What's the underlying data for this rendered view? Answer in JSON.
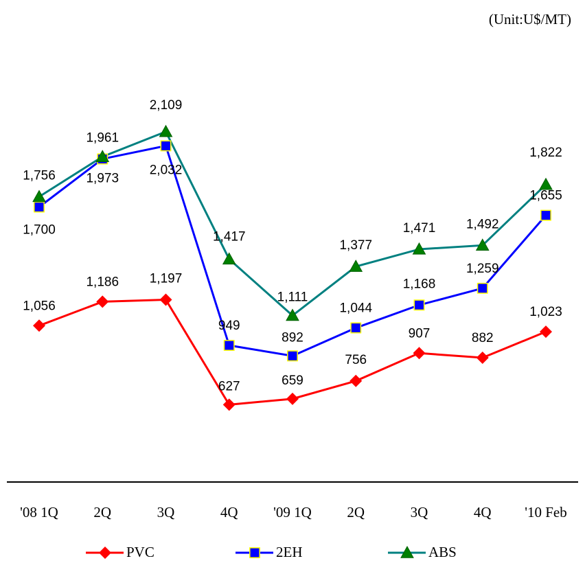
{
  "chart_data": {
    "type": "line",
    "unit": "(Unit:U$/MT)",
    "categories": [
      "'08 1Q",
      "2Q",
      "3Q",
      "4Q",
      "'09 1Q",
      "2Q",
      "3Q",
      "4Q",
      "'10 Feb"
    ],
    "series": [
      {
        "name": "PVC",
        "color": "#ff0000",
        "marker": "diamond",
        "values": [
          1056,
          1186,
          1197,
          627,
          659,
          756,
          907,
          882,
          1023
        ],
        "value_labels": [
          "1,056",
          "1,186",
          "1,197",
          "627",
          "659",
          "756",
          "907",
          "882",
          "1,023"
        ]
      },
      {
        "name": "2EH",
        "color": "#0000ff",
        "marker": "square",
        "values": [
          1700,
          1961,
          2032,
          949,
          892,
          1044,
          1168,
          1259,
          1655
        ],
        "value_labels": [
          "1,700",
          "1,961",
          "2,032",
          "949",
          "892",
          "1,044",
          "1,168",
          "1,259",
          "1,655"
        ]
      },
      {
        "name": "ABS",
        "color": "#008080",
        "marker": "triangle",
        "values": [
          1756,
          1973,
          2109,
          1417,
          1111,
          1377,
          1471,
          1492,
          1822
        ],
        "value_labels": [
          "1,756",
          "1,973",
          "2,109",
          "1,417",
          "1,111",
          "1,377",
          "1,471",
          "1,492",
          "1,822"
        ]
      }
    ],
    "ylim": [
      200,
      2600
    ],
    "legend": "bottom"
  }
}
